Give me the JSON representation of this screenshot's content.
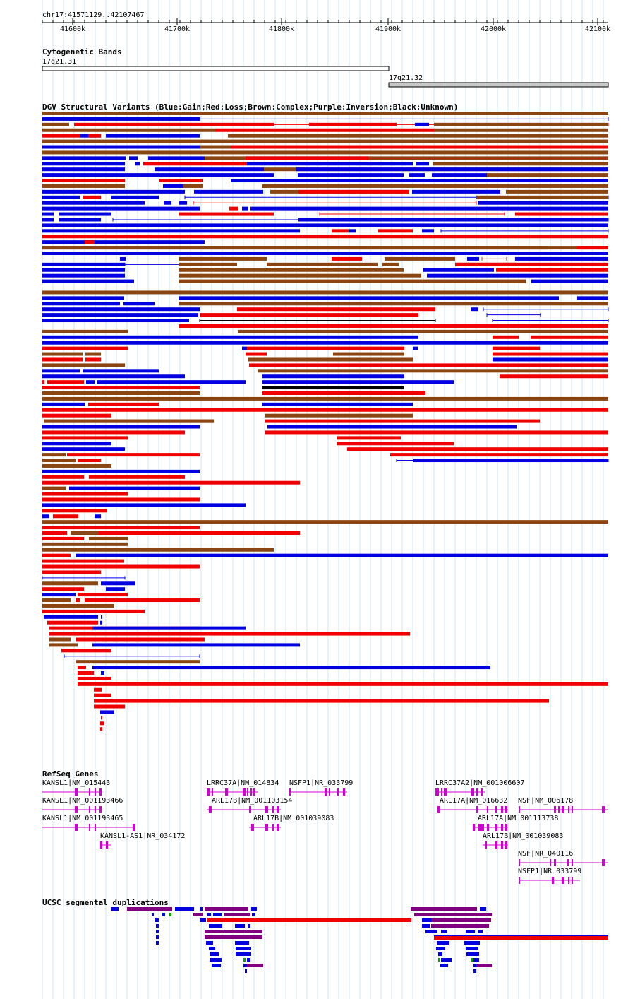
{
  "ruler": {
    "position": "chr17:41571129..42107467",
    "ticks": [
      "41600k",
      "41700k",
      "41800k",
      "41900k",
      "42000k",
      "42100k"
    ]
  },
  "tracks": {
    "cyto": {
      "title": "Cytogenetic Bands",
      "bands": [
        {
          "name": "17q21.31",
          "color": "#ffffff"
        },
        {
          "name": "17q21.32",
          "color": "#c8c8c8"
        }
      ]
    },
    "dgv": {
      "title": "DGV Structural Variants (Blue:Gain;Red:Loss;Brown:Complex;Purple:Inversion;Black:Unknown)",
      "colors": {
        "gain": "#0000e0",
        "loss": "#f00000",
        "complex": "#8b4513",
        "inversion": "#800080",
        "unknown": "#000000"
      }
    },
    "refseq": {
      "title": "RefSeq Genes",
      "color": "#d000d0",
      "genes": [
        "KANSL1|NM_015443",
        "KANSL1|NM_001193466",
        "KANSL1|NM_001193465",
        "KANSL1-AS1|NR_034172",
        "LRRC37A|NM_014834",
        "NSFP1|NR_033799",
        "ARL17B|NM_001103154",
        "ARL17B|NM_001039083",
        "LRRC37A2|NM_001006607",
        "ARL17A|NM_016632",
        "NSF|NM_006178",
        "ARL17A|NM_001113738",
        "ARL17B|NM_001039083",
        "NSF|NR_040116",
        "NSFP1|NR_033799"
      ]
    },
    "segdup": {
      "title": "UCSC segmental duplications",
      "colors": {
        "blue": "#0000e0",
        "purple": "#800080",
        "red": "#f00000",
        "green": "#00a000"
      }
    }
  }
}
